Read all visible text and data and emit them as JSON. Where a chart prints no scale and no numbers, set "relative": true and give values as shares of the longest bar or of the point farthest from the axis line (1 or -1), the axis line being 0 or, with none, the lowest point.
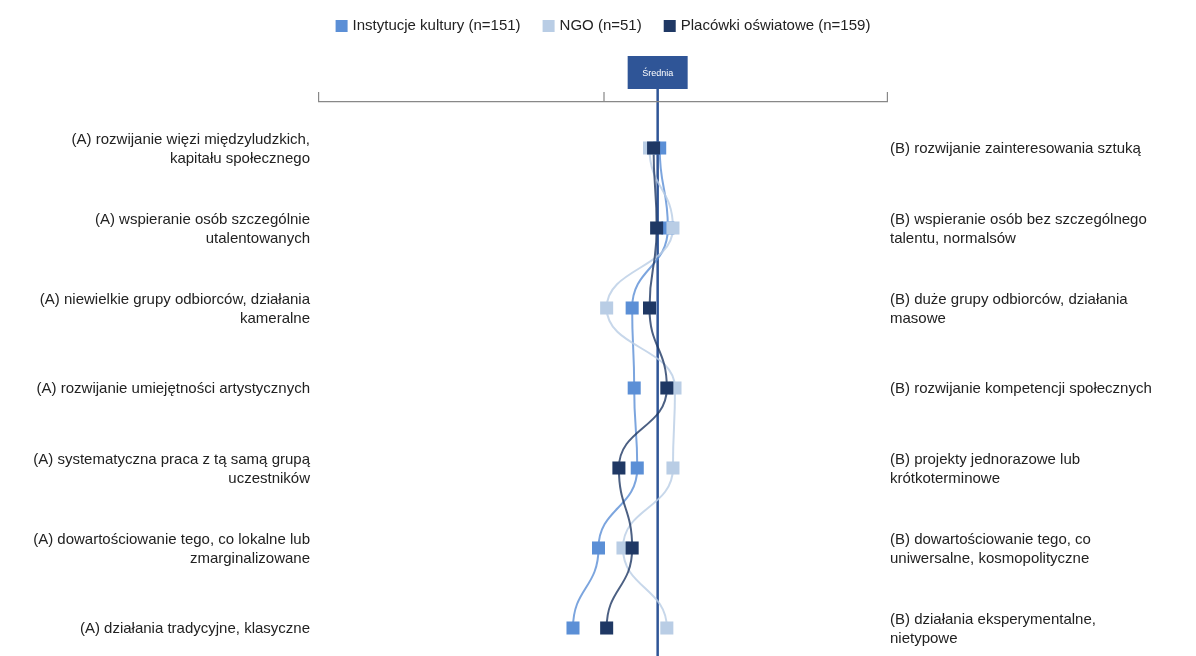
{
  "chart_data": {
    "type": "line",
    "orientation": "horizontal",
    "relative": true,
    "marker": "square",
    "legend": "top",
    "grid": false,
    "categories": [
      "(A) rozwijanie więzi międzyludzkich, kapitału społecznego",
      "(A) wspieranie osób szczególnie utalentowanych",
      "(A) niewielkie grupy odbiorców, działania kameralne",
      "(A) rozwijanie umiejętności artystycznych",
      "(A) systematyczna praca z tą samą grupą uczestników",
      "(A) dowartościowanie tego, co lokalne lub zmarginalizowane",
      "(A) działania tradycyjne, klasyczne"
    ],
    "annotations": [
      "(B) rozwijanie zainteresowania sztuką",
      "(B) wspieranie osób bez szczególnego talentu, normalsów",
      "(B) duże grupy odbiorców, działania masowe",
      "(B) rozwijanie kompetencji społecznych",
      "(B) projekty jednorazowe lub krótkoterminowe",
      "(B) dowartościowanie tego, co uniwersalne, kosmopolityczne",
      "(B) działania eksperymentalne, nietypowe"
    ],
    "ref_lines": [
      {
        "axis": "x",
        "value": 0.83,
        "label": "Średnia",
        "color": "#2f5597"
      }
    ],
    "series": [
      {
        "name": "Instytucje kultury (n=151)",
        "color": "#5b8fd6",
        "values": [
          0.85,
          0.93,
          0.58,
          0.6,
          0.63,
          0.25,
          0
        ]
      },
      {
        "name": "NGO (n=51)",
        "color": "#b9cde5",
        "values": [
          0.75,
          0.98,
          0.33,
          1,
          0.98,
          0.49,
          0.92
        ]
      },
      {
        "name": "Placówki oświatowe (n=159)",
        "color": "#1f3864",
        "values": [
          0.79,
          0.82,
          0.75,
          0.92,
          0.45,
          0.58,
          0.33
        ]
      }
    ]
  }
}
